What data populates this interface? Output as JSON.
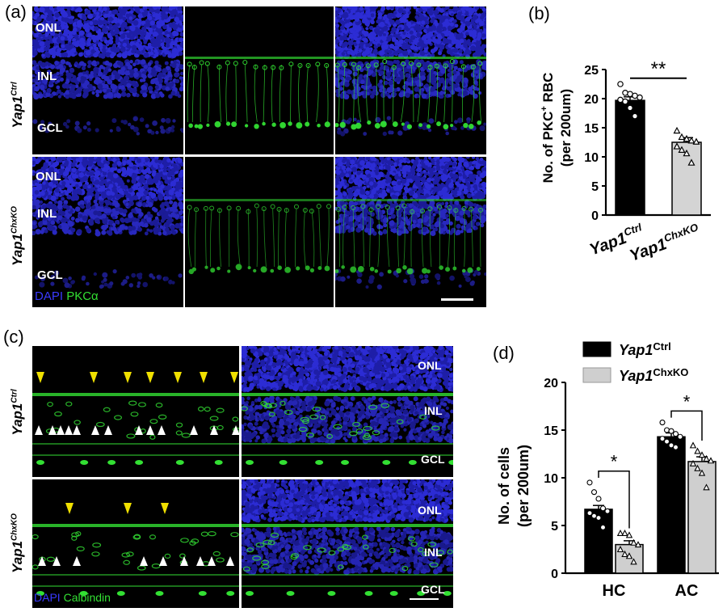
{
  "panel_labels": {
    "a": "(a)",
    "b": "(b)",
    "c": "(c)",
    "d": "(d)"
  },
  "panel_a": {
    "layers": [
      "ONL",
      "INL",
      "GCL"
    ],
    "rows": [
      {
        "gene": "Yap1",
        "sup": "Ctrl"
      },
      {
        "gene": "Yap1",
        "sup": "ChxKO"
      }
    ],
    "stain1": "DAPI",
    "stain2": "PKCα"
  },
  "panel_c": {
    "layers": [
      "ONL",
      "INL",
      "GCL"
    ],
    "rows": [
      {
        "gene": "Yap1",
        "sup": "Ctrl"
      },
      {
        "gene": "Yap1",
        "sup": "ChxKO"
      }
    ],
    "stain1": "DAPI",
    "stain2": "Calbindin"
  },
  "colors": {
    "dapi": "#2b2bd6",
    "green": "#33e033",
    "yellow_arrow": "#f0e000",
    "white_arrow": "#ffffff"
  },
  "chart_data": [
    {
      "type": "bar",
      "panel": "b",
      "ylabel": "No. of PKC⁺ RBC (per 200um)",
      "ylabel_line1": "No. of PKC",
      "ylabel_sup": "+",
      "ylabel_line1_end": " RBC",
      "ylabel_line2": "(per 200um)",
      "ylim": [
        0,
        25
      ],
      "yticks": [
        0,
        5,
        10,
        15,
        20,
        25
      ],
      "categories": [
        {
          "gene": "Yap1",
          "sup": "Ctrl"
        },
        {
          "gene": "Yap1",
          "sup": "ChxKO"
        }
      ],
      "values": [
        19.7,
        12.5
      ],
      "errors": [
        0.6,
        0.8
      ],
      "fills": [
        "#000000",
        "#d4d4d4"
      ],
      "points": [
        [
          22.5,
          21.0,
          20.8,
          20.5,
          20.2,
          19.8,
          19.5,
          18.4,
          17.0
        ],
        [
          14.5,
          13.4,
          13.1,
          12.8,
          12.6,
          11.8,
          11.2,
          10.6,
          9.0
        ]
      ],
      "significance": "**"
    },
    {
      "type": "bar",
      "panel": "d",
      "ylabel_line1": "No. of cells",
      "ylabel_line2": "(per 200um)",
      "ylim": [
        0,
        20
      ],
      "yticks": [
        0,
        5,
        10,
        15,
        20
      ],
      "categories": [
        "HC",
        "AC"
      ],
      "series": [
        {
          "name": "Yap1",
          "sup": "Ctrl",
          "values": [
            6.7,
            14.3
          ],
          "errors": [
            0.4,
            0.4
          ],
          "fill": "#000000",
          "points": [
            [
              9.5,
              8.5,
              7.8,
              6.8,
              6.5,
              6.3,
              6.0,
              5.8,
              4.8
            ],
            [
              15.8,
              15.0,
              14.9,
              14.6,
              14.3,
              14.1,
              13.8,
              13.4,
              13.2
            ]
          ]
        },
        {
          "name": "Yap1",
          "sup": "ChxKO",
          "values": [
            3.0,
            11.7
          ],
          "errors": [
            0.4,
            0.5
          ],
          "fill": "#cfcfcf",
          "points": [
            [
              4.2,
              4.2,
              4.0,
              3.2,
              3.0,
              2.5,
              2.0,
              1.8,
              1.2
            ],
            [
              13.4,
              12.8,
              12.4,
              12.0,
              11.8,
              11.5,
              11.0,
              10.5,
              9.0
            ]
          ]
        }
      ],
      "significance": [
        "*",
        "*"
      ]
    }
  ]
}
